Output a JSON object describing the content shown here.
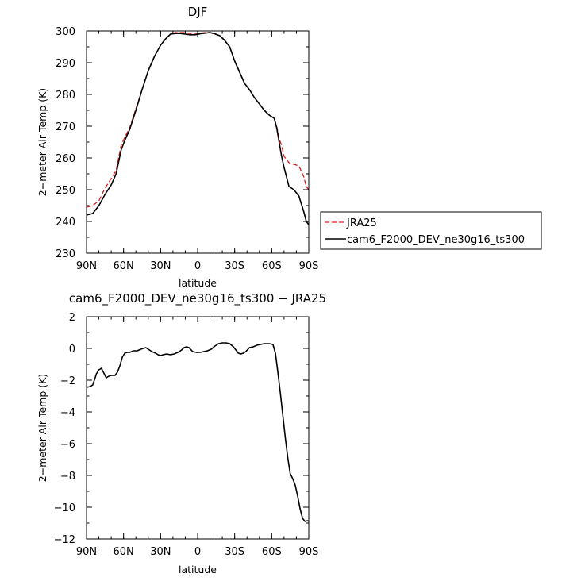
{
  "chart_data": [
    {
      "type": "line",
      "title": "DJF",
      "xlabel": "latitude",
      "ylabel": "2−meter Air Temp (K)",
      "xlim": [
        -90,
        90
      ],
      "ylim": [
        230,
        300
      ],
      "xticks": [
        -90,
        -60,
        -30,
        0,
        30,
        60,
        90
      ],
      "xtick_labels": [
        "90N",
        "60N",
        "30N",
        "0",
        "30S",
        "60S",
        "90S"
      ],
      "yticks": [
        230,
        240,
        250,
        260,
        270,
        280,
        290,
        300
      ],
      "ytick_labels": [
        "230",
        "240",
        "250",
        "260",
        "270",
        "280",
        "290",
        "300"
      ],
      "legend_position": "outside-right",
      "series": [
        {
          "name": "JRA25",
          "color": "#e41a1c",
          "dash": true,
          "x": [
            -90,
            -85,
            -80,
            -75,
            -70,
            -66,
            -62,
            -59,
            -55,
            -50,
            -45,
            -40,
            -35,
            -30,
            -26,
            -22,
            -18,
            -14,
            -10,
            -6,
            -2,
            2,
            6,
            10,
            14,
            18,
            22,
            26,
            30,
            34,
            38,
            42,
            46,
            50,
            54,
            58,
            62,
            64,
            66,
            68,
            70,
            74,
            78,
            82,
            86,
            88,
            90
          ],
          "y": [
            244.5,
            245,
            246.5,
            250.5,
            253.5,
            256,
            264,
            266.5,
            269.5,
            275.5,
            281.5,
            287.5,
            292,
            295.5,
            297.5,
            299,
            299.5,
            299.5,
            299.5,
            299.2,
            299,
            299.3,
            299.5,
            299.5,
            299,
            298.5,
            297,
            295,
            290.5,
            287,
            283.5,
            281.5,
            279,
            277,
            275,
            273.5,
            272.5,
            270,
            266,
            264,
            260.5,
            258.5,
            258,
            257.5,
            254,
            251,
            250
          ]
        },
        {
          "name": "cam6_F2000_DEV_ne30g16_ts300",
          "color": "#000000",
          "dash": false,
          "x": [
            -90,
            -85,
            -80,
            -75,
            -70,
            -66,
            -62,
            -59,
            -55,
            -50,
            -45,
            -40,
            -35,
            -30,
            -26,
            -22,
            -18,
            -14,
            -10,
            -6,
            -2,
            2,
            6,
            10,
            14,
            18,
            22,
            26,
            30,
            34,
            38,
            42,
            46,
            50,
            54,
            58,
            62,
            64,
            66,
            68,
            70,
            74,
            78,
            82,
            86,
            88,
            90
          ],
          "y": [
            242,
            242.5,
            245,
            248.5,
            251.5,
            255,
            262.5,
            265.5,
            269,
            275,
            281.5,
            287.5,
            292,
            295.5,
            297.5,
            299,
            299.2,
            299.2,
            299,
            298.8,
            298.8,
            299.1,
            299.3,
            299.5,
            299.1,
            298.5,
            297,
            295,
            290.5,
            287,
            283.5,
            281.5,
            279,
            277,
            275,
            273.5,
            272.5,
            269.5,
            265,
            260.5,
            257,
            251,
            250,
            248,
            243,
            240,
            239
          ]
        }
      ]
    },
    {
      "type": "line",
      "title": "cam6_F2000_DEV_ne30g16_ts300 − JRA25",
      "xlabel": "latitude",
      "ylabel": "2−meter Air Temp (K)",
      "xlim": [
        -90,
        90
      ],
      "ylim": [
        -12,
        2
      ],
      "xticks": [
        -90,
        -60,
        -30,
        0,
        30,
        60,
        90
      ],
      "xtick_labels": [
        "90N",
        "60N",
        "30N",
        "0",
        "30S",
        "60S",
        "90S"
      ],
      "yticks": [
        -12,
        -10,
        -8,
        -6,
        -4,
        -2,
        0,
        2
      ],
      "ytick_labels": [
        "−12",
        "−10",
        "−8",
        "−6",
        "−4",
        "−2",
        "0",
        "2"
      ],
      "series": [
        {
          "color": "#000000",
          "dash": false,
          "x": [
            -90,
            -87,
            -85,
            -83,
            -82,
            -80,
            -78,
            -76,
            -74,
            -72,
            -70,
            -67,
            -65,
            -63,
            -61,
            -59,
            -57,
            -55,
            -52,
            -49,
            -46,
            -44,
            -42,
            -40,
            -37,
            -34,
            -32,
            -30,
            -28,
            -25,
            -22,
            -19,
            -16,
            -13,
            -11,
            -9,
            -7,
            -4,
            -1,
            2,
            5,
            8,
            11,
            14,
            17,
            20,
            23,
            26,
            29,
            31,
            33,
            35,
            37,
            39,
            42,
            45,
            48,
            51,
            54,
            58,
            61,
            63,
            65,
            67,
            69,
            71,
            73,
            75,
            77,
            79,
            81,
            83,
            85,
            87,
            89,
            90
          ],
          "y": [
            -2.45,
            -2.4,
            -2.3,
            -1.85,
            -1.6,
            -1.35,
            -1.25,
            -1.55,
            -1.85,
            -1.75,
            -1.7,
            -1.7,
            -1.5,
            -1.1,
            -0.55,
            -0.3,
            -0.25,
            -0.25,
            -0.15,
            -0.15,
            -0.05,
            0,
            0.05,
            -0.05,
            -0.2,
            -0.3,
            -0.4,
            -0.45,
            -0.4,
            -0.35,
            -0.4,
            -0.35,
            -0.25,
            -0.1,
            0.05,
            0.1,
            0.05,
            -0.2,
            -0.25,
            -0.25,
            -0.2,
            -0.15,
            -0.05,
            0.15,
            0.3,
            0.35,
            0.35,
            0.3,
            0.1,
            -0.1,
            -0.3,
            -0.35,
            -0.3,
            -0.2,
            0.05,
            0.1,
            0.2,
            0.25,
            0.3,
            0.3,
            0.25,
            -0.3,
            -1.5,
            -2.8,
            -4.2,
            -5.6,
            -6.9,
            -7.9,
            -8.2,
            -8.6,
            -9.3,
            -10.1,
            -10.7,
            -10.9,
            -10.85,
            -10.9
          ]
        }
      ]
    }
  ]
}
